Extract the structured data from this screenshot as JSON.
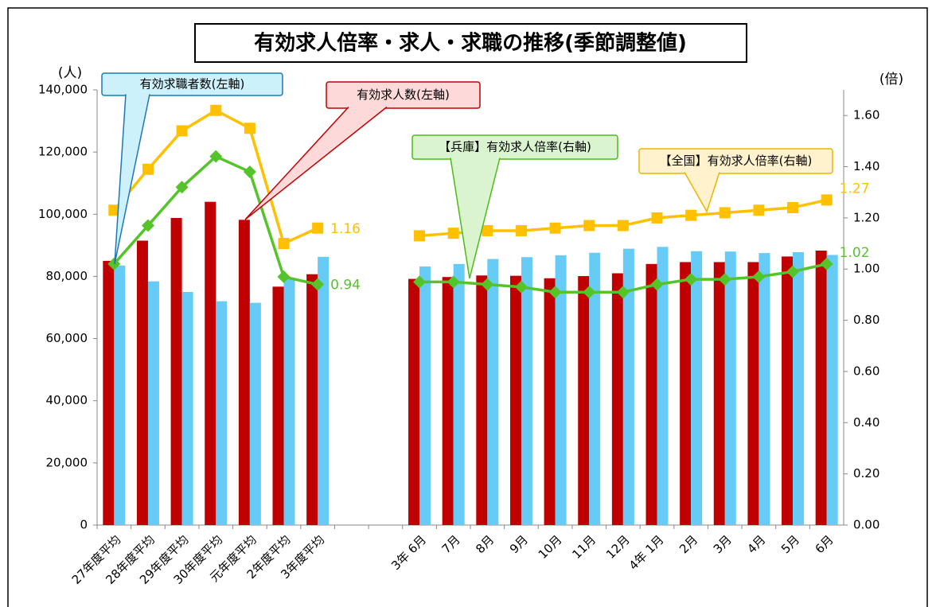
{
  "chart_data": {
    "type": "bar-line",
    "title": "有効求人倍率・求人・求職の推移(季節調整値)",
    "y_unit_label": "(人)",
    "y2_unit_label": "(倍)",
    "categories": [
      "27年度平均",
      "28年度平均",
      "29年度平均",
      "30年度平均",
      "元年度平均",
      "2年度平均",
      "3年度平均",
      null,
      null,
      "3年 6月",
      "7月",
      "8月",
      "9月",
      "10月",
      "11月",
      "12月",
      "4年 1月",
      "2月",
      "3月",
      "4月",
      "5月",
      "6月"
    ],
    "ylim": [
      0,
      140000
    ],
    "yticks": [
      0,
      {
        "value": 20000,
        "label": "20,000"
      },
      {
        "value": 40000,
        "label": "40,000"
      },
      {
        "value": 60000,
        "label": "60,000"
      },
      {
        "value": 80000,
        "label": "80,000"
      },
      {
        "value": 100000,
        "label": "100,000"
      },
      {
        "value": 120000,
        "label": "120,000"
      },
      {
        "value": 140000,
        "label": "140,000"
      }
    ],
    "y2lim": [
      0,
      1.7
    ],
    "y2ticks": [
      {
        "value": 0,
        "label": "0.00"
      },
      {
        "value": 0.2,
        "label": "0.20"
      },
      {
        "value": 0.4,
        "label": "0.40"
      },
      {
        "value": 0.6,
        "label": "0.60"
      },
      {
        "value": 0.8,
        "label": "0.80"
      },
      {
        "value": 1,
        "label": "1.00"
      },
      {
        "value": 1.2,
        "label": "1.20"
      },
      {
        "value": 1.4,
        "label": "1.40"
      },
      {
        "value": 1.6,
        "label": "1.60"
      }
    ],
    "grid": false,
    "series": [
      {
        "name": "有効求人数(左軸)",
        "type": "bar",
        "color": "#c00000",
        "values": [
          85000,
          91500,
          98800,
          104000,
          98200,
          76700,
          80700,
          null,
          null,
          79200,
          79800,
          80300,
          80200,
          79400,
          80100,
          81000,
          84000,
          84600,
          84600,
          84600,
          86400,
          88300
        ]
      },
      {
        "name": "有効求職者数(左軸)",
        "type": "bar",
        "color": "#66ccf5",
        "values": [
          83500,
          78400,
          75000,
          72000,
          71500,
          79400,
          86300,
          null,
          null,
          83200,
          84000,
          85600,
          86200,
          86800,
          87600,
          88900,
          89500,
          88100,
          88000,
          87500,
          87800,
          86900
        ]
      },
      {
        "name": "【全国】有効求人倍率(右軸)",
        "type": "line",
        "axis": "y2",
        "color": "#ffc000",
        "marker": "square",
        "values": [
          1.23,
          1.39,
          1.54,
          1.62,
          1.55,
          1.1,
          1.16,
          null,
          null,
          1.13,
          1.14,
          1.15,
          1.15,
          1.16,
          1.17,
          1.17,
          1.2,
          1.21,
          1.22,
          1.23,
          1.24,
          1.27
        ],
        "value_labels": [
          null,
          null,
          null,
          null,
          null,
          null,
          "1.16",
          null,
          null,
          null,
          null,
          null,
          null,
          null,
          null,
          null,
          null,
          null,
          null,
          null,
          null,
          "1.27"
        ]
      },
      {
        "name": "【兵庫】有効求人倍率(右軸)",
        "type": "line",
        "axis": "y2",
        "color": "#55c42a",
        "marker": "diamond",
        "values": [
          1.02,
          1.17,
          1.32,
          1.44,
          1.38,
          0.97,
          0.94,
          null,
          null,
          0.95,
          0.95,
          0.94,
          0.93,
          0.91,
          0.91,
          0.91,
          0.94,
          0.96,
          0.96,
          0.97,
          0.99,
          1.02
        ],
        "value_labels": [
          null,
          null,
          null,
          null,
          null,
          null,
          "0.94",
          null,
          null,
          null,
          null,
          null,
          null,
          null,
          null,
          null,
          null,
          null,
          null,
          null,
          null,
          "1.02"
        ]
      }
    ]
  }
}
